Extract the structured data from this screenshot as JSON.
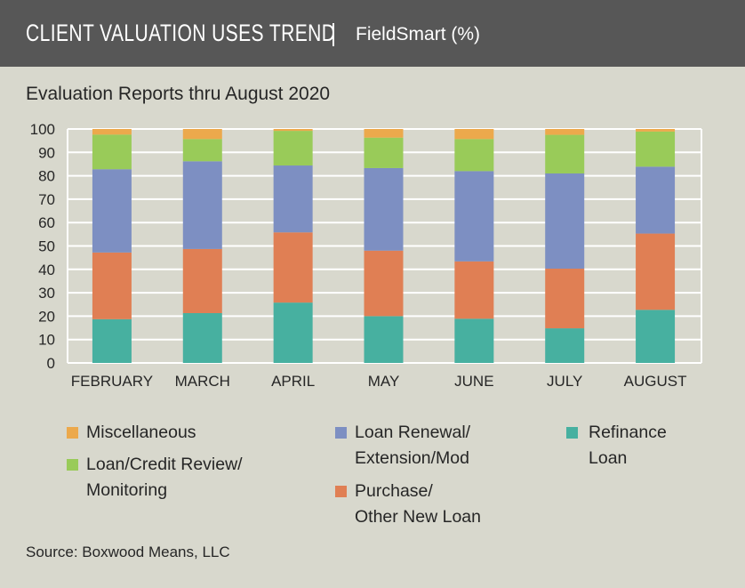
{
  "header": {
    "title": "CLIENT VALUATION USES TREND",
    "separator": "|",
    "subtitle": "FieldSmart (%)"
  },
  "chart_data": {
    "type": "bar",
    "stacked": true,
    "title": "Evaluation Reports thru August 2020",
    "xlabel": "",
    "ylabel": "",
    "ylim": [
      0,
      100
    ],
    "yticks": [
      0,
      10,
      20,
      30,
      40,
      50,
      60,
      70,
      80,
      90,
      100
    ],
    "grid": true,
    "legend_position": "bottom",
    "categories": [
      "FEBRUARY",
      "MARCH",
      "APRIL",
      "MAY",
      "JUNE",
      "JULY",
      "AUGUST"
    ],
    "series": [
      {
        "name": "Refinance Loan",
        "color": "#47b0a0",
        "values": [
          18.7,
          21.3,
          25.8,
          20.0,
          18.9,
          14.8,
          22.7
        ]
      },
      {
        "name": "Purchase/ Other New Loan",
        "color": "#e07f54",
        "values": [
          28.5,
          27.4,
          30.0,
          28.0,
          24.5,
          25.5,
          32.6
        ]
      },
      {
        "name": "Loan Renewal/ Extension/Mod",
        "color": "#7d8fc2",
        "values": [
          35.6,
          37.5,
          28.6,
          35.3,
          38.6,
          40.7,
          28.6
        ]
      },
      {
        "name": "Loan/Credit Review/ Monitoring",
        "color": "#99cb59",
        "values": [
          14.8,
          9.5,
          14.8,
          13.0,
          13.7,
          16.5,
          15.0
        ]
      },
      {
        "name": "Miscellaneous",
        "color": "#eca94c",
        "values": [
          2.4,
          4.3,
          0.8,
          3.7,
          4.3,
          2.5,
          1.1
        ]
      }
    ]
  },
  "legend": {
    "misc": [
      "Miscellaneous"
    ],
    "credit": [
      "Loan/Credit Review/",
      "Monitoring"
    ],
    "renewal": [
      "Loan Renewal/",
      "Extension/Mod"
    ],
    "purchase": [
      "Purchase/",
      "Other New Loan"
    ],
    "refi": [
      "Refinance",
      "Loan"
    ]
  },
  "source": "Source: Boxwood Means, LLC"
}
